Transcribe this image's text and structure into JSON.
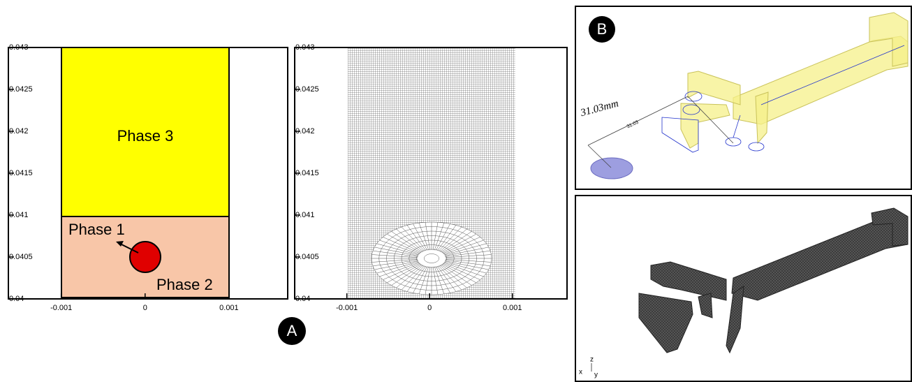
{
  "figure": {
    "panel_a": {
      "label": "A",
      "plots": [
        {
          "xlim": [
            -0.00163,
            0.0017
          ],
          "ylim": [
            0.04,
            0.043
          ],
          "xticks": [
            -0.001,
            0,
            0.001
          ],
          "yticks": [
            0.04,
            0.0405,
            0.041,
            0.0415,
            0.042,
            0.0425,
            0.043
          ],
          "regions": [
            "Phase 3",
            "Phase 1",
            "Phase 2"
          ]
        },
        {
          "xlim": [
            -0.00163,
            0.00166
          ],
          "ylim": [
            0.04,
            0.043
          ],
          "xticks": [
            -0.001,
            0,
            0.001
          ],
          "yticks": [
            0.04,
            0.0405,
            0.041,
            0.0415,
            0.042,
            0.0425,
            0.043
          ]
        }
      ]
    },
    "panel_b": {
      "label": "B",
      "dimension": "31.03mm",
      "dimension_small": "31.03",
      "triad": [
        "z",
        "x",
        "y"
      ]
    }
  }
}
